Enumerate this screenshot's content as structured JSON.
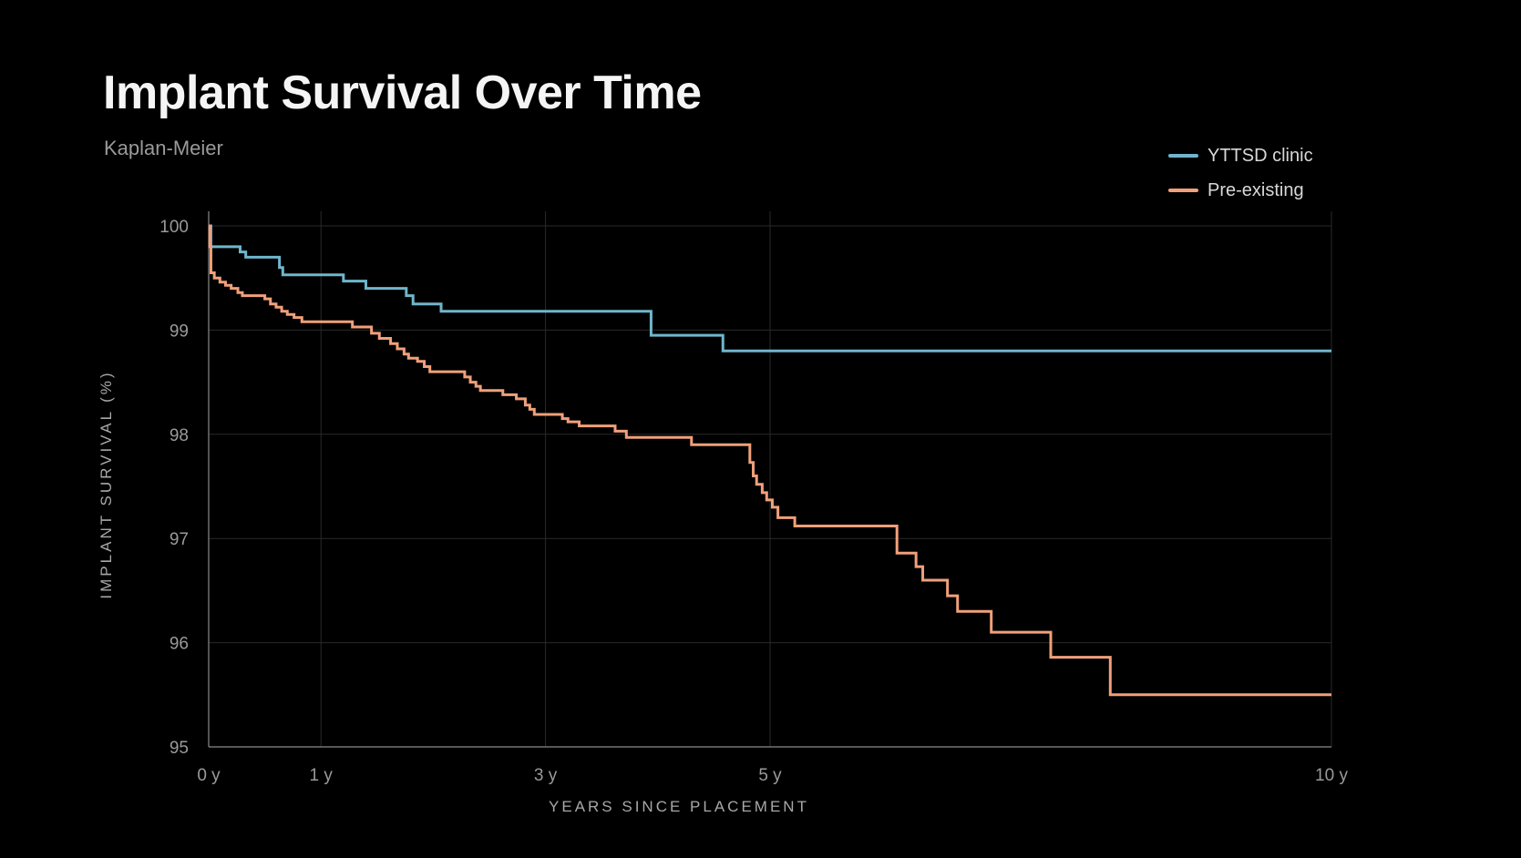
{
  "title": "Implant Survival Over Time",
  "subtitle": "Kaplan-Meier",
  "chart_data": {
    "type": "line",
    "xlabel": "YEARS SINCE PLACEMENT",
    "ylabel": "IMPLANT SURVIVAL (%)",
    "xlim": [
      0,
      10
    ],
    "ylim": [
      95,
      100
    ],
    "x_ticks": [
      {
        "value": 0,
        "label": "0 y"
      },
      {
        "value": 1,
        "label": "1 y"
      },
      {
        "value": 3,
        "label": "3 y"
      },
      {
        "value": 5,
        "label": "5 y"
      },
      {
        "value": 10,
        "label": "10 y"
      }
    ],
    "y_ticks": [
      {
        "value": 95,
        "label": "95"
      },
      {
        "value": 96,
        "label": "96"
      },
      {
        "value": 97,
        "label": "97"
      },
      {
        "value": 98,
        "label": "98"
      },
      {
        "value": 99,
        "label": "99"
      },
      {
        "value": 100,
        "label": "100"
      }
    ],
    "grid": true,
    "step": true,
    "legend_position": "top-right",
    "series": [
      {
        "name": "YTTSD clinic",
        "color": "#6fb6cc",
        "points": [
          [
            0,
            100
          ],
          [
            0.02,
            99.8
          ],
          [
            0.28,
            99.75
          ],
          [
            0.33,
            99.7
          ],
          [
            0.63,
            99.6
          ],
          [
            0.66,
            99.53
          ],
          [
            1.2,
            99.47
          ],
          [
            1.4,
            99.4
          ],
          [
            1.76,
            99.33
          ],
          [
            1.82,
            99.25
          ],
          [
            2.07,
            99.18
          ],
          [
            3.94,
            98.95
          ],
          [
            4.58,
            98.8
          ],
          [
            10,
            98.8
          ]
        ]
      },
      {
        "name": "Pre-existing",
        "color": "#f0a07a",
        "points": [
          [
            0,
            100
          ],
          [
            0.01,
            99.8
          ],
          [
            0.02,
            99.55
          ],
          [
            0.05,
            99.5
          ],
          [
            0.1,
            99.46
          ],
          [
            0.15,
            99.43
          ],
          [
            0.2,
            99.4
          ],
          [
            0.26,
            99.36
          ],
          [
            0.3,
            99.33
          ],
          [
            0.5,
            99.3
          ],
          [
            0.55,
            99.25
          ],
          [
            0.6,
            99.22
          ],
          [
            0.65,
            99.18
          ],
          [
            0.7,
            99.15
          ],
          [
            0.76,
            99.12
          ],
          [
            0.83,
            99.08
          ],
          [
            1.28,
            99.03
          ],
          [
            1.45,
            98.97
          ],
          [
            1.52,
            98.92
          ],
          [
            1.62,
            98.87
          ],
          [
            1.68,
            98.82
          ],
          [
            1.74,
            98.77
          ],
          [
            1.78,
            98.73
          ],
          [
            1.86,
            98.7
          ],
          [
            1.92,
            98.65
          ],
          [
            1.97,
            98.6
          ],
          [
            2.28,
            98.55
          ],
          [
            2.33,
            98.5
          ],
          [
            2.38,
            98.46
          ],
          [
            2.42,
            98.42
          ],
          [
            2.62,
            98.38
          ],
          [
            2.74,
            98.34
          ],
          [
            2.82,
            98.28
          ],
          [
            2.86,
            98.24
          ],
          [
            2.9,
            98.19
          ],
          [
            3.15,
            98.15
          ],
          [
            3.2,
            98.12
          ],
          [
            3.3,
            98.08
          ],
          [
            3.62,
            98.03
          ],
          [
            3.72,
            97.97
          ],
          [
            4.3,
            97.9
          ],
          [
            4.82,
            97.73
          ],
          [
            4.85,
            97.6
          ],
          [
            4.88,
            97.52
          ],
          [
            4.93,
            97.44
          ],
          [
            4.97,
            97.37
          ],
          [
            5.02,
            97.3
          ],
          [
            5.07,
            97.2
          ],
          [
            5.22,
            97.12
          ],
          [
            6.13,
            96.86
          ],
          [
            6.3,
            96.73
          ],
          [
            6.36,
            96.6
          ],
          [
            6.58,
            96.45
          ],
          [
            6.67,
            96.3
          ],
          [
            6.97,
            96.1
          ],
          [
            7.5,
            95.86
          ],
          [
            8.03,
            95.5
          ],
          [
            10,
            95.5
          ]
        ]
      }
    ]
  }
}
